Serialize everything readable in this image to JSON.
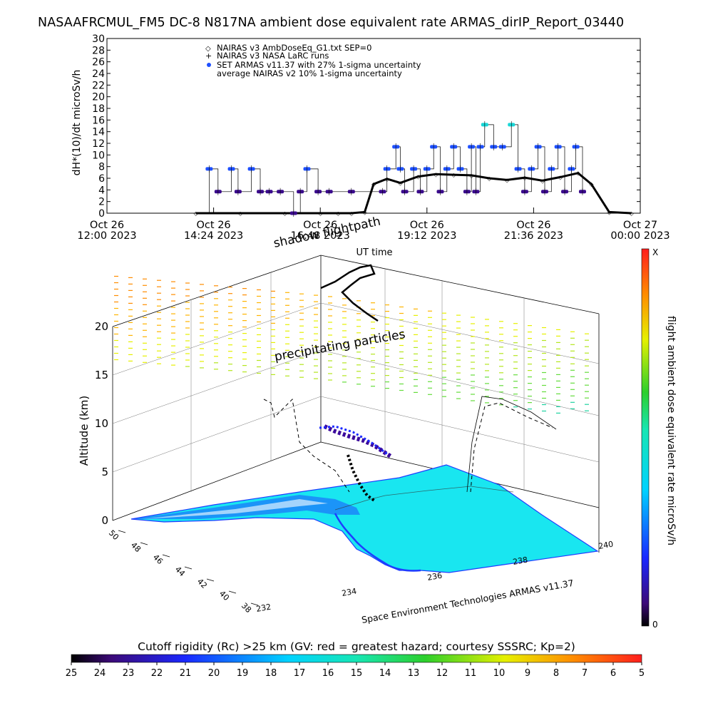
{
  "header": {
    "title": "NASAAFRCMUL_FM5 DC-8   N817NA ambient dose equivalent rate ARMAS_dirIP_Report_03440"
  },
  "timeseries": {
    "ylabel": "dH*(10)/dt microSv/h",
    "xlabel": "UT time",
    "legend": [
      {
        "symbol": "◇",
        "text": "NAIRAS v3 AmbDoseEq_G1.txt SEP=0"
      },
      {
        "symbol": "+",
        "text": "NAIRAS v3 NASA LaRC runs"
      },
      {
        "symbol": "●",
        "text": "SET ARMAS v11.37 with 27% 1-sigma uncertainty"
      },
      {
        "symbol": "",
        "text": "average NAIRAS v2 10% 1-sigma uncertainty"
      }
    ],
    "x_ticks": [
      {
        "line1": "Oct 26",
        "line2": "12:00 2023"
      },
      {
        "line1": "Oct 26",
        "line2": "14:24 2023"
      },
      {
        "line1": "Oct 26",
        "line2": "16:48 2023"
      },
      {
        "line1": "Oct 26",
        "line2": "19:12 2023"
      },
      {
        "line1": "Oct 26",
        "line2": "21:36 2023"
      },
      {
        "line1": "Oct 27",
        "line2": "00:00 2023"
      }
    ]
  },
  "globe": {
    "shadow_label": "shadow flightpath",
    "precip_label": "precipitating particles",
    "altitude_label": "Altitude (km)",
    "altitude_ticks": [
      "0",
      "5",
      "10",
      "15",
      "20"
    ],
    "lat_ticks": [
      "50",
      "48",
      "46",
      "44",
      "42",
      "40",
      "38"
    ],
    "lon_ticks": [
      "232",
      "234",
      "236",
      "238",
      "240"
    ],
    "credit": "Space Environment Technologies ARMAS v11.37"
  },
  "dose_colorbar": {
    "label": "flight ambient dose equivalent rate microSv/h",
    "top": "X",
    "bottom": "0"
  },
  "rigidity_colorbar": {
    "title": "Cutoff rigidity (Rc) >25 km (GV: red = greatest hazard; courtesy SSSRC; Kp=2)",
    "ticks": [
      "25",
      "24",
      "23",
      "22",
      "21",
      "20",
      "19",
      "18",
      "17",
      "16",
      "15",
      "14",
      "13",
      "12",
      "11",
      "10",
      "9",
      "8",
      "7",
      "6",
      "5"
    ]
  },
  "colors": {
    "armas_low": "#3a0a8c",
    "armas_mid": "#1e50ff",
    "armas_high": "#19d7d7",
    "ocean": "#19e6f0",
    "coast": "#1e3cff"
  },
  "chart_data": [
    {
      "type": "scatter",
      "title": "NASAAFRCMUL_FM5 DC-8   N817NA ambient dose equivalent rate ARMAS_dirIP_Report_03440",
      "xlabel": "UT time",
      "ylabel": "dH*(10)/dt microSv/h",
      "xlim": [
        12.0,
        24.0
      ],
      "ylim": [
        0,
        30
      ],
      "y_ticks": [
        0,
        2,
        4,
        6,
        8,
        10,
        12,
        14,
        16,
        18,
        20,
        22,
        24,
        26,
        28,
        30
      ],
      "legend_position": "top-left",
      "grid": false,
      "series": [
        {
          "name": "SET ARMAS v11.37 with 27% 1-sigma uncertainty",
          "x": [
            14.3,
            14.5,
            14.8,
            14.95,
            15.25,
            15.45,
            15.65,
            15.9,
            16.2,
            16.35,
            16.5,
            16.75,
            17.0,
            17.5,
            18.2,
            18.3,
            18.5,
            18.6,
            18.7,
            18.9,
            19.05,
            19.2,
            19.35,
            19.5,
            19.65,
            19.8,
            19.95,
            20.1,
            20.2,
            20.3,
            20.4,
            20.5,
            20.7,
            20.9,
            21.1,
            21.25,
            21.4,
            21.55,
            21.7,
            21.85,
            22.0,
            22.15,
            22.3,
            22.45,
            22.55,
            22.7
          ],
          "y": [
            7.6,
            3.7,
            7.6,
            3.7,
            7.6,
            3.7,
            3.7,
            3.7,
            0,
            3.7,
            7.6,
            3.7,
            3.7,
            3.7,
            3.7,
            7.6,
            11.4,
            7.6,
            3.7,
            7.6,
            3.7,
            7.6,
            11.4,
            3.7,
            7.6,
            11.4,
            7.6,
            3.7,
            11.4,
            3.7,
            11.4,
            15.2,
            11.4,
            11.4,
            15.2,
            7.6,
            3.7,
            7.6,
            11.4,
            3.7,
            7.6,
            11.4,
            3.7,
            7.6,
            11.4,
            3.7
          ]
        },
        {
          "name": "NAIRAS v3 AmbDoseEq_G1.txt SEP=0",
          "x": [
            14.0,
            15.0,
            16.0,
            16.8,
            17.2,
            17.5,
            17.8,
            18.0,
            18.3,
            18.6,
            19.0,
            19.4,
            19.8,
            20.2,
            20.6,
            21.0,
            21.4,
            21.8,
            22.2,
            22.6,
            22.9,
            23.3,
            23.8
          ],
          "y": [
            0,
            0,
            0,
            0,
            0,
            0,
            0.2,
            5.0,
            5.9,
            5.2,
            6.3,
            6.7,
            6.6,
            6.5,
            6.0,
            5.7,
            6.1,
            5.6,
            6.2,
            6.9,
            5.0,
            0.2,
            0
          ]
        }
      ]
    },
    {
      "type": "heatmap",
      "title": "",
      "xlabel": "",
      "ylabel": "Altitude (km)",
      "zlim": [
        0,
        20
      ],
      "lat_range": [
        38,
        50
      ],
      "lon_range": [
        232,
        240
      ]
    }
  ]
}
